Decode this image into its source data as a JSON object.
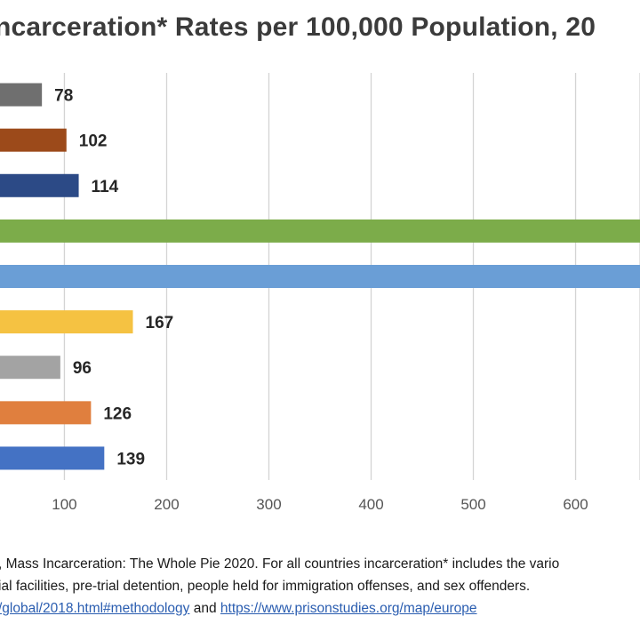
{
  "title": "ncarceration* Rates per 100,000 Population, 20",
  "chart_data": {
    "type": "bar",
    "orientation": "horizontal",
    "title": "ncarceration* Rates per 100,000 Population, 20",
    "values": [
      78,
      102,
      114,
      null,
      null,
      167,
      96,
      126,
      139
    ],
    "value_labels": [
      "78",
      "102",
      "114",
      "",
      "",
      "167",
      "96",
      "126",
      "139"
    ],
    "colors": [
      "#6f6f6f",
      "#9c4a1a",
      "#2c4a86",
      "#7cac4a",
      "#6a9ed6",
      "#f5c242",
      "#a3a3a3",
      "#e07f3e",
      "#4472c4"
    ],
    "x_ticks": [
      "100",
      "200",
      "300",
      "400",
      "500",
      "600"
    ],
    "x_tick_values": [
      100,
      200,
      300,
      400,
      500,
      600
    ],
    "xlim": [
      37,
      663
    ],
    "grid": true,
    "note": "rows 4 and 5 extend beyond the visible crop (value not visible)"
  },
  "footnotes": {
    "line1": ", Mass Incarceration: The Whole Pie 2020. For all countries incarceration* includes the vario",
    "line2": "ial facilities, pre-trial detention, people held for immigration offenses, and sex offenders.",
    "line3_link1": "/global/2018.html#methodology",
    "line3_and": " and ",
    "line3_link2": "https://www.prisonstudies.org/map/europe"
  }
}
